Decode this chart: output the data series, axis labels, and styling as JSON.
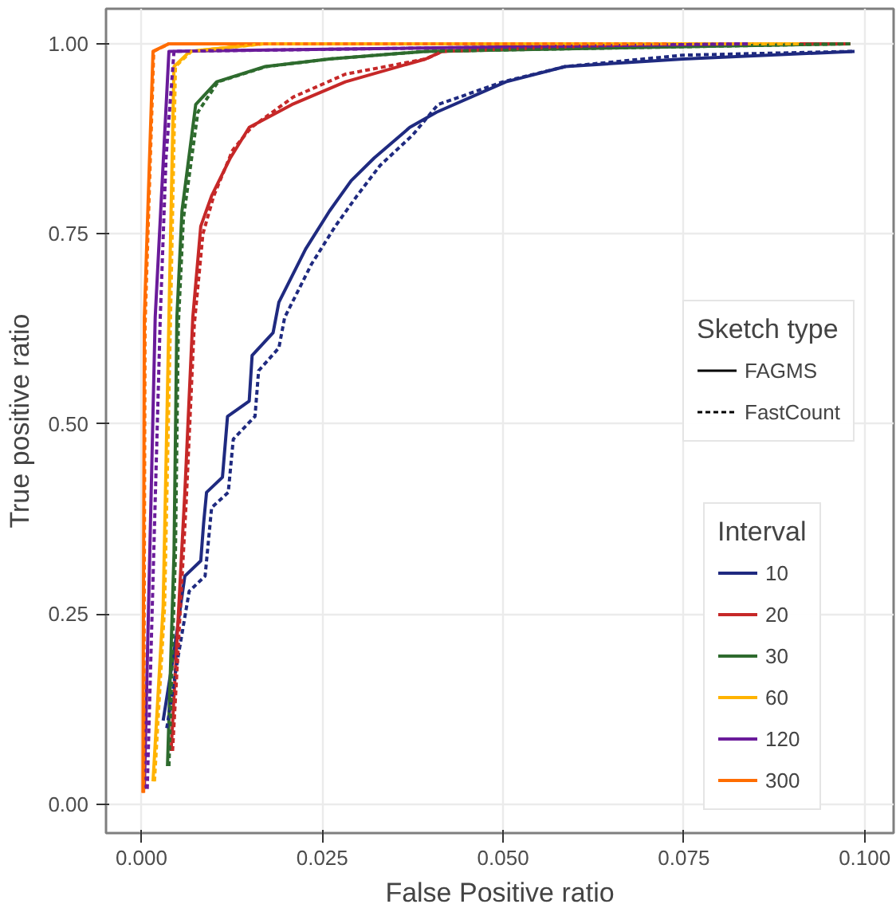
{
  "chart_data": {
    "type": "line",
    "xlabel": "False Positive ratio",
    "ylabel": "True positive ratio",
    "legend_title": "Interval",
    "legend": "right",
    "grid": true,
    "annotations": [
      "Sketch type",
      "FAGMS",
      "FastCount"
    ],
    "xlim": [
      -0.0049,
      0.104
    ],
    "ylim": [
      -0.038,
      1.046
    ],
    "xticks": [
      {
        "value": 0,
        "label": "0.000"
      },
      0.025,
      {
        "value": 0.05,
        "label": "0.050"
      },
      0.075,
      {
        "value": 0.1,
        "label": "0.100"
      }
    ],
    "yticks": [
      {
        "value": 0,
        "label": "0.00"
      },
      0.25,
      {
        "value": 0.5,
        "label": "0.50"
      },
      0.75,
      {
        "value": 1,
        "label": "1.00"
      }
    ],
    "series": [
      {
        "name": "10",
        "color": "#1f2a80",
        "line_style": "solid",
        "x": [
          0.003,
          0.0045,
          0.006,
          0.0082,
          0.0086,
          0.009,
          0.0112,
          0.0119,
          0.0149,
          0.0153,
          0.0182,
          0.019,
          0.0227,
          0.026,
          0.029,
          0.0322,
          0.0371,
          0.0408,
          0.0504,
          0.0586,
          0.0749,
          0.0986
        ],
        "values": [
          0.11,
          0.2,
          0.3,
          0.32,
          0.37,
          0.41,
          0.43,
          0.51,
          0.53,
          0.59,
          0.62,
          0.66,
          0.73,
          0.78,
          0.82,
          0.85,
          0.89,
          0.91,
          0.95,
          0.97,
          0.98,
          0.99
        ]
      },
      {
        "color": "#1f2a80",
        "line_style": "dashed",
        "x": [
          0.0035,
          0.005,
          0.0066,
          0.0088,
          0.0093,
          0.0097,
          0.012,
          0.0127,
          0.0157,
          0.0162,
          0.019,
          0.0198,
          0.0235,
          0.0268,
          0.0298,
          0.033,
          0.0375,
          0.041,
          0.05,
          0.0586,
          0.0749,
          0.0986
        ],
        "values": [
          0.1,
          0.19,
          0.28,
          0.3,
          0.35,
          0.39,
          0.41,
          0.48,
          0.51,
          0.57,
          0.6,
          0.64,
          0.71,
          0.76,
          0.8,
          0.84,
          0.88,
          0.92,
          0.95,
          0.97,
          0.985,
          0.99
        ]
      },
      {
        "name": "20",
        "color": "#c62828",
        "line_style": "solid",
        "x": [
          0.0041,
          0.006,
          0.0071,
          0.0082,
          0.0097,
          0.0123,
          0.0149,
          0.0208,
          0.0282,
          0.0393,
          0.0416,
          0.071,
          0.098
        ],
        "values": [
          0.07,
          0.41,
          0.64,
          0.76,
          0.8,
          0.85,
          0.89,
          0.92,
          0.95,
          0.98,
          0.99,
          1.0,
          1.0
        ]
      },
      {
        "color": "#c62828",
        "line_style": "dashed",
        "x": [
          0.0043,
          0.0062,
          0.0073,
          0.0085,
          0.01,
          0.0126,
          0.0152,
          0.021,
          0.0282,
          0.0393,
          0.0416,
          0.071,
          0.098
        ],
        "values": [
          0.07,
          0.4,
          0.63,
          0.75,
          0.8,
          0.86,
          0.89,
          0.93,
          0.96,
          0.98,
          0.99,
          1.0,
          1.0
        ]
      },
      {
        "name": "30",
        "color": "#2e6b2e",
        "line_style": "solid",
        "x": [
          0.0036,
          0.0045,
          0.0049,
          0.0056,
          0.0075,
          0.0104,
          0.0171,
          0.026,
          0.0393,
          0.098
        ],
        "values": [
          0.05,
          0.33,
          0.64,
          0.78,
          0.92,
          0.95,
          0.97,
          0.98,
          0.99,
          1.0
        ]
      },
      {
        "color": "#2e6b2e",
        "line_style": "dashed",
        "x": [
          0.0038,
          0.0047,
          0.0051,
          0.0058,
          0.0078,
          0.0106,
          0.0173,
          0.026,
          0.0393,
          0.098
        ],
        "values": [
          0.05,
          0.33,
          0.63,
          0.77,
          0.91,
          0.95,
          0.97,
          0.98,
          0.99,
          1.0
        ]
      },
      {
        "name": "60",
        "color": "#ffb300",
        "line_style": "solid",
        "x": [
          0.0016,
          0.003,
          0.0038,
          0.0045,
          0.0067,
          0.017,
          0.091
        ],
        "values": [
          0.03,
          0.26,
          0.64,
          0.97,
          0.99,
          1.0,
          1.0
        ]
      },
      {
        "color": "#ffb300",
        "line_style": "dashed",
        "x": [
          0.0018,
          0.0032,
          0.004,
          0.0047,
          0.0069,
          0.017,
          0.091
        ],
        "values": [
          0.03,
          0.26,
          0.63,
          0.97,
          0.99,
          1.0,
          1.0
        ]
      },
      {
        "name": "120",
        "color": "#6a1b9a",
        "line_style": "solid",
        "x": [
          0.0004,
          0.0019,
          0.0038,
          0.084
        ],
        "values": [
          0.02,
          0.64,
          0.99,
          1.0
        ]
      },
      {
        "color": "#6a1b9a",
        "line_style": "dashed",
        "x": [
          0.0008,
          0.0026,
          0.0034,
          0.0045,
          0.084
        ],
        "values": [
          0.02,
          0.64,
          0.85,
          0.99,
          1.0
        ]
      },
      {
        "name": "300",
        "color": "#ff6d00",
        "line_style": "solid",
        "x": [
          0.0002,
          0.0004,
          0.0016,
          0.0038,
          0.073
        ],
        "values": [
          0.015,
          0.64,
          0.99,
          1.0,
          1.0
        ]
      },
      {
        "color": "#ff6d00",
        "line_style": "dashed",
        "x": [
          0.0003,
          0.0005,
          0.0017,
          0.0038,
          0.073
        ],
        "values": [
          0.015,
          0.63,
          0.99,
          1.0,
          1.0
        ]
      }
    ]
  }
}
